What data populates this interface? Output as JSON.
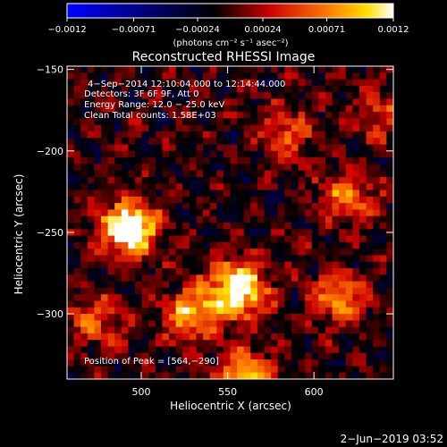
{
  "chart_data": {
    "type": "heatmap",
    "title": "Reconstructed RHESSI Image",
    "xlabel": "Heliocentric X (arcsec)",
    "ylabel": "Heliocentric Y (arcsec)",
    "xlim": [
      457,
      646
    ],
    "ylim": [
      -340,
      -148
    ],
    "x_ticks": [
      500,
      550,
      600
    ],
    "y_ticks": [
      -150,
      -200,
      -250,
      -300
    ],
    "x_tick_labels": [
      "500",
      "550",
      "600"
    ],
    "y_tick_labels": [
      "−150",
      "−200",
      "−250",
      "−300"
    ],
    "colorbar": {
      "range": [
        -0.0012,
        0.0012
      ],
      "ticks": [
        -0.0012,
        -0.00071,
        -0.00024,
        0.00024,
        0.00071,
        0.0012
      ],
      "tick_labels": [
        "−0.0012",
        "−0.00071",
        "−0.00024",
        "0.00024",
        "0.00071",
        "0.0012"
      ],
      "units": "(photons cm⁻² s⁻¹ asec⁻²)"
    },
    "annotations": [
      "4−Sep−2014 12:10:04.000 to 12:14:44.000",
      "Detectors: 3F 6F 9F, Att 0",
      "Energy Range: 12.0 − 25.0 keV",
      "Clean     Total counts: 1.58E+03"
    ],
    "peak_label": "Position of Peak = [564,−290]",
    "peak": [
      564,
      -290
    ],
    "sources": [
      {
        "x": 493,
        "y": -247,
        "level": 0.95
      },
      {
        "x": 474,
        "y": -305,
        "level": 0.55
      },
      {
        "x": 556,
        "y": -285,
        "level": 0.95
      },
      {
        "x": 530,
        "y": -300,
        "level": 0.7
      },
      {
        "x": 620,
        "y": -228,
        "level": 0.6
      },
      {
        "x": 615,
        "y": -290,
        "level": 0.65
      },
      {
        "x": 584,
        "y": -190,
        "level": 0.55
      },
      {
        "x": 560,
        "y": -338,
        "level": 0.7
      },
      {
        "x": 638,
        "y": -178,
        "level": 0.5
      }
    ]
  },
  "footer_date": "2−Jun−2019 03:52",
  "colors": {
    "colormap": [
      "#0000ff",
      "#000000",
      "#ff0000",
      "#ffff00",
      "#ffffff"
    ],
    "background": "#000000",
    "foreground": "#ffffff"
  }
}
